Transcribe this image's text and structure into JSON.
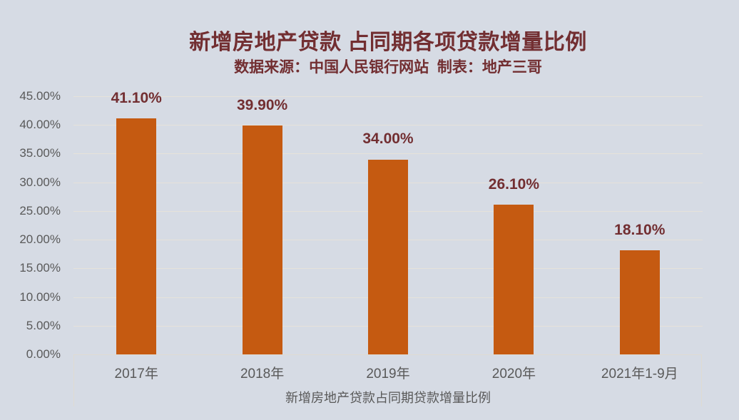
{
  "chart": {
    "title": "新增房地产贷款 占同期各项贷款增量比例",
    "subtitle": "数据来源：中国人民银行网站  制表：地产三哥",
    "xlabel": "新增房地产贷款占同期贷款增量比例"
  },
  "chart_data": {
    "type": "bar",
    "title": "新增房地产贷款 占同期各项贷款增量比例",
    "subtitle": "数据来源：中国人民银行网站  制表：地产三哥",
    "categories": [
      "2017年",
      "2018年",
      "2019年",
      "2020年",
      "2021年1-9月"
    ],
    "values": [
      41.1,
      39.9,
      34.0,
      26.1,
      18.1
    ],
    "value_labels": [
      "41.10%",
      "39.90%",
      "34.00%",
      "26.10%",
      "18.10%"
    ],
    "xlabel": "新增房地产贷款占同期贷款增量比例",
    "ylabel": "",
    "ylim": [
      0,
      45
    ],
    "ytick_step": 5,
    "ytick_labels": [
      "0.00%",
      "5.00%",
      "10.00%",
      "15.00%",
      "20.00%",
      "25.00%",
      "30.00%",
      "35.00%",
      "40.00%",
      "45.00%"
    ],
    "grid": true,
    "legend": false
  },
  "colors": {
    "background": "#D6DBE4",
    "bar": "#C55A11",
    "heading_text": "#722E31",
    "data_label_text": "#722E31",
    "axis_text": "#595959",
    "gridline": "#E6E2DA",
    "axis_border": "#DFDBD2"
  }
}
